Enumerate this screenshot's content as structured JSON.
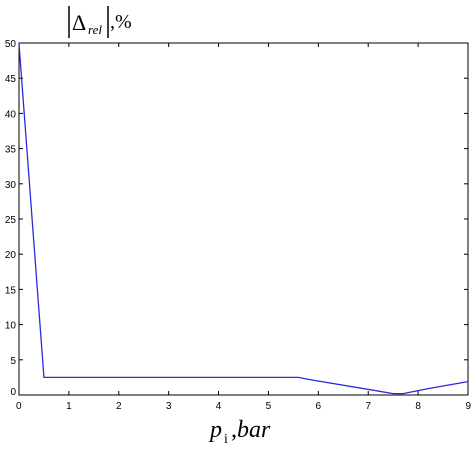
{
  "chart_data": {
    "type": "line",
    "xlabel_main": "p",
    "xlabel_sub": "i",
    "xlabel_rest": ",bar",
    "ylabel_delta": "Δ",
    "ylabel_sub": "rel",
    "ylabel_rest": ",%",
    "xlim": [
      0,
      9
    ],
    "ylim": [
      0,
      50
    ],
    "xticks": [
      "0",
      "1",
      "2",
      "3",
      "4",
      "5",
      "6",
      "7",
      "8",
      "9"
    ],
    "yticks": [
      "0",
      "5",
      "10",
      "15",
      "20",
      "25",
      "30",
      "35",
      "40",
      "45",
      "50"
    ],
    "grid": false,
    "series": [
      {
        "color": "#2a2ae0",
        "x": [
          0,
          0.02,
          0.5,
          5.6,
          5.9,
          7.5,
          7.7,
          8.2,
          9.0
        ],
        "y": [
          50,
          48,
          2.5,
          2.5,
          2.1,
          0.2,
          0.2,
          0.9,
          1.9
        ]
      }
    ]
  }
}
